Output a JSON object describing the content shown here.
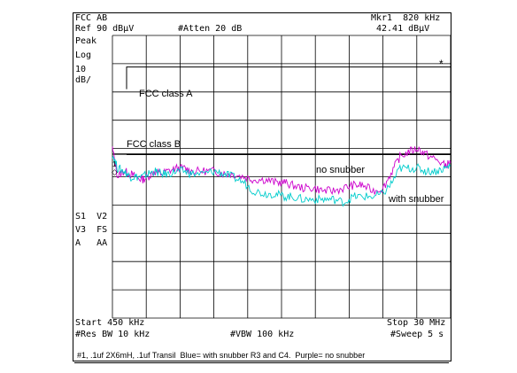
{
  "header": {
    "mode": "FCC AB",
    "marker_label": "Mkr1  820 kHz",
    "ref_level": "Ref 90 dBµV",
    "attenuation": "#Atten 20 dB",
    "marker_value": "42.41 dBµV"
  },
  "side": {
    "detector": "Peak",
    "scale_type": "Log",
    "scale_value": "10",
    "scale_unit": "dB/",
    "marker_star": "*",
    "marker_id": "1",
    "s1v2": "S1  V2",
    "v3fs": "V3  FS",
    "aaa": "A   AA"
  },
  "annotations": {
    "fcc_a": "FCC class A",
    "fcc_b": "FCC class B",
    "no_snubber": "no snubber",
    "with_snubber": "with snubber"
  },
  "footer": {
    "start": "Start 450 kHz",
    "stop": "Stop 30 MHz",
    "rbw": "#Res BW 10 kHz",
    "vbw": "#VBW 100 kHz",
    "sweep": "#Sweep 5 s"
  },
  "caption": "#1, .1uf 2X6mH, .1uf Transil  Blue= with snubber R3 and C4.  Purple= no snubber",
  "colors": {
    "no_snubber": "#cc00cc",
    "with_snubber": "#00cccc",
    "grid": "#000000"
  },
  "chart_data": {
    "type": "line",
    "x_scale": "log",
    "x_range_hz": [
      450000,
      30000000
    ],
    "y_range_dbuv": [
      -10,
      90
    ],
    "grid": true,
    "series": [
      {
        "name": "no snubber",
        "x_khz": [
          450,
          480,
          520,
          560,
          600,
          650,
          700,
          760,
          820,
          900,
          1000,
          1100,
          1200,
          1400,
          1600,
          1800,
          2000,
          2300,
          2600,
          3000,
          3400,
          3800,
          4200,
          4800,
          5500,
          6200,
          7000,
          8000,
          9000,
          10000,
          11500,
          13000,
          14500,
          16000,
          18000,
          20000,
          22000,
          25000,
          28000,
          30000
        ],
        "y": [
          50,
          40,
          42,
          41,
          40,
          39,
          40,
          42,
          41,
          42,
          43,
          43,
          42,
          42,
          42,
          41,
          41,
          40,
          39,
          39,
          38,
          38,
          37,
          36,
          36,
          35,
          35,
          36,
          37,
          37,
          35,
          36,
          42,
          47,
          49,
          50,
          48,
          46,
          44,
          45
        ]
      },
      {
        "name": "with snubber",
        "x_khz": [
          450,
          480,
          520,
          560,
          600,
          650,
          700,
          760,
          820,
          900,
          1000,
          1100,
          1200,
          1400,
          1600,
          1800,
          2000,
          2300,
          2600,
          3000,
          3400,
          3800,
          4200,
          4800,
          5500,
          6200,
          7000,
          8000,
          9000,
          10000,
          11500,
          13000,
          14500,
          16000,
          18000,
          20000,
          22000,
          25000,
          28000,
          30000
        ],
        "y": [
          48,
          43,
          42,
          40,
          40,
          40,
          41,
          42,
          41,
          41,
          42,
          42,
          41,
          41,
          42,
          41,
          40,
          38,
          35,
          34,
          34,
          33,
          33,
          32,
          32,
          32,
          32,
          31,
          33,
          33,
          33,
          34,
          38,
          43,
          43,
          43,
          42,
          42,
          43,
          44
        ]
      }
    ],
    "limits": [
      {
        "name": "FCC class A",
        "y": 79
      },
      {
        "name": "FCC class B",
        "y": 48
      }
    ]
  }
}
